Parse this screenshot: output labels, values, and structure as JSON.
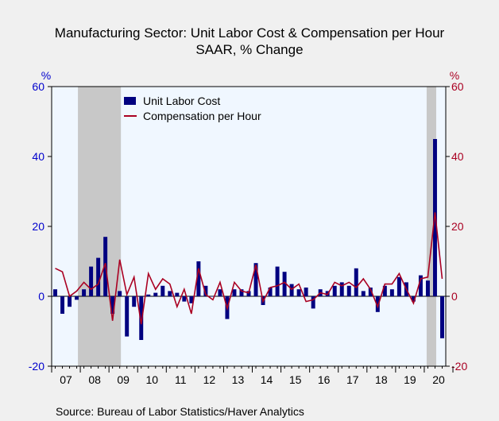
{
  "chart_data": {
    "type": "bar+line",
    "title": "Manufacturing Sector: Unit Labor Cost & Compensation per Hour",
    "subtitle": "SAAR, % Change",
    "left_axis": {
      "unit": "%",
      "range": [
        -20,
        60
      ],
      "ticks": [
        "60",
        "40",
        "20",
        "0",
        "-20"
      ],
      "color": "#0000cc"
    },
    "right_axis": {
      "unit": "%",
      "range": [
        -20,
        60
      ],
      "ticks": [
        "60",
        "40",
        "20",
        "0",
        "-20"
      ],
      "color": "#aa0022"
    },
    "x_labels": [
      "07",
      "08",
      "09",
      "10",
      "11",
      "12",
      "13",
      "14",
      "15",
      "16",
      "17",
      "18",
      "19",
      "20"
    ],
    "recessions": [
      {
        "start": "2007-12",
        "end": "2009-06"
      },
      {
        "start": "2020-02",
        "end": "2020-06"
      }
    ],
    "series": [
      {
        "name": "Unit Labor Cost",
        "kind": "bar",
        "color": "#000080",
        "values": [
          2.0,
          -5.0,
          -3.0,
          -1.0,
          2.0,
          8.5,
          11.0,
          17.0,
          -5.0,
          1.5,
          -11.5,
          -3.0,
          -12.5,
          0.5,
          1.0,
          3.0,
          1.5,
          1.0,
          -1.5,
          -2.0,
          10.0,
          3.0,
          0.0,
          2.0,
          -6.5,
          2.0,
          2.0,
          1.5,
          9.5,
          -2.5,
          2.5,
          8.5,
          7.0,
          3.5,
          2.0,
          2.5,
          -3.5,
          2.0,
          1.5,
          3.0,
          4.0,
          3.0,
          8.0,
          1.5,
          2.5,
          -4.5,
          3.0,
          2.0,
          5.5,
          4.0,
          -1.5,
          6.0,
          4.5,
          45.0,
          -12.0
        ]
      },
      {
        "name": "Compensation per Hour",
        "kind": "line",
        "color": "#aa0022",
        "values": [
          8.0,
          7.0,
          0.0,
          1.5,
          4.0,
          2.0,
          3.5,
          9.5,
          -7.0,
          10.5,
          0.5,
          5.5,
          -8.0,
          6.5,
          2.0,
          5.0,
          3.5,
          -3.0,
          2.0,
          -5.0,
          8.0,
          0.5,
          -1.0,
          4.0,
          -3.5,
          4.0,
          1.5,
          1.0,
          9.0,
          -1.5,
          2.5,
          3.0,
          4.0,
          2.0,
          3.5,
          -1.5,
          -1.0,
          1.0,
          0.5,
          4.0,
          3.0,
          4.0,
          2.5,
          5.0,
          2.0,
          -3.0,
          3.5,
          3.5,
          6.5,
          2.0,
          -2.0,
          5.0,
          5.5,
          24.0,
          5.0
        ]
      }
    ],
    "legend": {
      "position": "top-left-inside",
      "entries": [
        "Unit Labor Cost",
        "Compensation per Hour"
      ]
    },
    "source": "Source:  Bureau of Labor Statistics/Haver Analytics"
  }
}
